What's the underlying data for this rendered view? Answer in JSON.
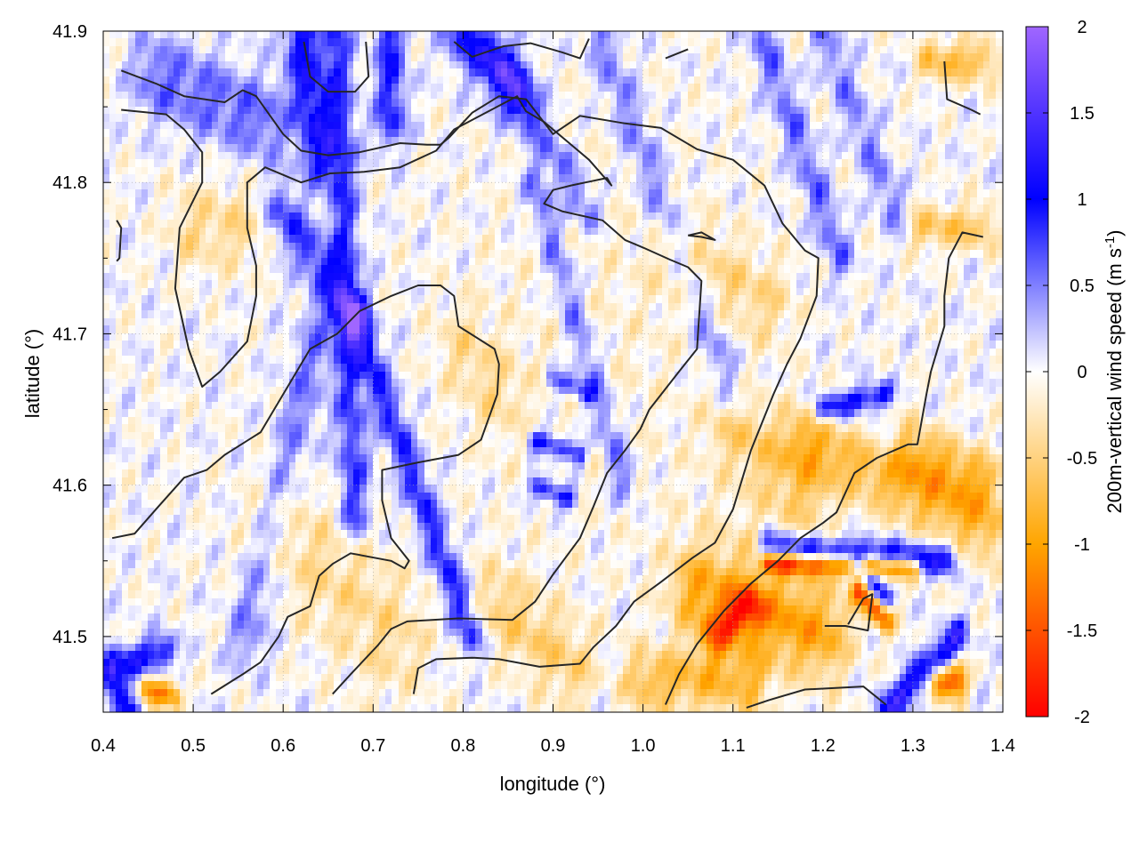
{
  "chart_data": {
    "type": "heatmap",
    "title": "",
    "xlabel": "longitude (°)",
    "ylabel": "latitude (°)",
    "xlim": [
      0.4,
      1.4
    ],
    "ylim": [
      41.45,
      41.9
    ],
    "x_ticks": [
      0.4,
      0.5,
      0.6,
      0.7,
      0.8,
      0.9,
      1.0,
      1.1,
      1.2,
      1.3,
      1.4
    ],
    "x_tick_labels": [
      "0.4",
      "0.5",
      "0.6",
      "0.7",
      "0.8",
      "0.9",
      "1.0",
      "1.1",
      "1.2",
      "1.3",
      "1.4"
    ],
    "y_ticks": [
      41.5,
      41.6,
      41.7,
      41.8,
      41.9
    ],
    "y_tick_labels": [
      "41.5",
      "41.6",
      "41.7",
      "41.8",
      "41.9"
    ],
    "grid": true,
    "colorbar": {
      "label_main": "200m-vertical wind speed (m s",
      "label_sup": "-1",
      "label_close": ")",
      "range": [
        -2,
        2
      ],
      "ticks": [
        -2,
        -1.5,
        -1,
        -0.5,
        0,
        0.5,
        1,
        1.5,
        2
      ],
      "tick_labels": [
        "-2",
        "-1.5",
        "-1",
        "-0.5",
        "0",
        "0.5",
        "1",
        "1.5",
        "2"
      ],
      "colors": [
        {
          "value": -2,
          "color": "#ff0000"
        },
        {
          "value": -1,
          "color": "#ffa500"
        },
        {
          "value": 0,
          "color": "#ffffff"
        },
        {
          "value": 1,
          "color": "#0000ff"
        },
        {
          "value": 2,
          "color": "#a066ff"
        }
      ]
    },
    "field_features": [
      {
        "lon0": 0.66,
        "lat0": 41.9,
        "lon1": 0.68,
        "lat1": 41.58,
        "w": 0.012,
        "amp": 0.8
      },
      {
        "lon0": 0.68,
        "lat0": 41.71,
        "lon1": 0.81,
        "lat1": 41.5,
        "w": 0.01,
        "amp": 0.9
      },
      {
        "lon0": 0.6,
        "lat0": 41.78,
        "lon1": 0.68,
        "lat1": 41.71,
        "w": 0.012,
        "amp": 0.8
      },
      {
        "lon0": 0.64,
        "lat0": 41.7,
        "lon1": 0.56,
        "lat1": 41.5,
        "w": 0.015,
        "amp": 0.5
      },
      {
        "lon0": 0.46,
        "lat0": 41.87,
        "lon1": 0.58,
        "lat1": 41.84,
        "w": 0.02,
        "amp": 0.6
      },
      {
        "lon0": 0.62,
        "lat0": 41.9,
        "lon1": 0.64,
        "lat1": 41.82,
        "w": 0.015,
        "amp": 1.0
      },
      {
        "lon0": 0.72,
        "lat0": 41.9,
        "lon1": 0.72,
        "lat1": 41.84,
        "w": 0.012,
        "amp": 0.9
      },
      {
        "lon0": 0.8,
        "lat0": 41.9,
        "lon1": 0.86,
        "lat1": 41.86,
        "w": 0.015,
        "amp": 1.0
      },
      {
        "lon0": 0.84,
        "lat0": 41.88,
        "lon1": 0.94,
        "lat1": 41.78,
        "w": 0.01,
        "amp": 0.6
      },
      {
        "lon0": 0.88,
        "lat0": 41.8,
        "lon1": 0.98,
        "lat1": 41.6,
        "w": 0.01,
        "amp": 0.6
      },
      {
        "lon0": 0.95,
        "lat0": 41.9,
        "lon1": 1.1,
        "lat1": 41.66,
        "w": 0.012,
        "amp": 0.5
      },
      {
        "lon0": 1.13,
        "lat0": 41.9,
        "lon1": 1.22,
        "lat1": 41.75,
        "w": 0.01,
        "amp": 0.6
      },
      {
        "lon0": 1.2,
        "lat0": 41.9,
        "lon1": 1.28,
        "lat1": 41.78,
        "w": 0.01,
        "amp": 0.5
      },
      {
        "lon0": 0.41,
        "lat0": 41.48,
        "lon1": 0.47,
        "lat1": 41.49,
        "w": 0.008,
        "amp": 1.0
      },
      {
        "lon0": 0.41,
        "lat0": 41.47,
        "lon1": 0.43,
        "lat1": 41.45,
        "w": 0.008,
        "amp": 1.0
      },
      {
        "lon0": 0.45,
        "lat0": 41.465,
        "lon1": 0.48,
        "lat1": 41.46,
        "w": 0.006,
        "amp": -1.2
      },
      {
        "lon0": 0.88,
        "lat0": 41.63,
        "lon1": 0.93,
        "lat1": 41.62,
        "w": 0.005,
        "amp": 1.0
      },
      {
        "lon0": 0.88,
        "lat0": 41.6,
        "lon1": 0.92,
        "lat1": 41.59,
        "w": 0.005,
        "amp": 1.0
      },
      {
        "lon0": 0.9,
        "lat0": 41.67,
        "lon1": 0.94,
        "lat1": 41.66,
        "w": 0.005,
        "amp": 0.8
      },
      {
        "lon0": 1.2,
        "lat0": 41.65,
        "lon1": 1.27,
        "lat1": 41.66,
        "w": 0.006,
        "amp": 1.0
      },
      {
        "lon0": 1.14,
        "lat0": 41.56,
        "lon1": 1.34,
        "lat1": 41.55,
        "w": 0.007,
        "amp": 1.1
      },
      {
        "lon0": 1.14,
        "lat0": 41.548,
        "lon1": 1.3,
        "lat1": 41.545,
        "w": 0.005,
        "amp": -1.4
      },
      {
        "lon0": 1.24,
        "lat0": 41.53,
        "lon1": 1.27,
        "lat1": 41.51,
        "w": 0.006,
        "amp": -1.3
      },
      {
        "lon0": 1.24,
        "lat0": 41.545,
        "lon1": 1.27,
        "lat1": 41.525,
        "w": 0.005,
        "amp": 1.0
      },
      {
        "lon0": 1.27,
        "lat0": 41.45,
        "lon1": 1.35,
        "lat1": 41.5,
        "w": 0.008,
        "amp": 1.2
      },
      {
        "lon0": 1.33,
        "lat0": 41.47,
        "lon1": 1.35,
        "lat1": 41.47,
        "w": 0.008,
        "amp": -1.5
      },
      {
        "lon0": 1.08,
        "lat0": 41.5,
        "lon1": 1.12,
        "lat1": 41.52,
        "w": 0.01,
        "amp": -1.0
      },
      {
        "lon0": 1.0,
        "lat0": 41.47,
        "lon1": 1.12,
        "lat1": 41.47,
        "w": 0.015,
        "amp": -0.7
      },
      {
        "lon0": 1.06,
        "lat0": 41.53,
        "lon1": 1.2,
        "lat1": 41.5,
        "w": 0.02,
        "amp": -0.8
      },
      {
        "lon0": 1.18,
        "lat0": 41.63,
        "lon1": 1.38,
        "lat1": 41.57,
        "w": 0.015,
        "amp": -0.7
      },
      {
        "lon0": 1.32,
        "lat0": 41.88,
        "lon1": 1.38,
        "lat1": 41.88,
        "w": 0.01,
        "amp": -0.7
      },
      {
        "lon0": 1.31,
        "lat0": 41.77,
        "lon1": 1.38,
        "lat1": 41.77,
        "w": 0.01,
        "amp": -0.6
      },
      {
        "lon0": 0.5,
        "lat0": 41.77,
        "lon1": 0.55,
        "lat1": 41.77,
        "w": 0.02,
        "amp": -0.4
      },
      {
        "lon0": 0.8,
        "lat0": 41.69,
        "lon1": 0.84,
        "lat1": 41.66,
        "w": 0.02,
        "amp": -0.35
      },
      {
        "lon0": 0.6,
        "lat0": 41.57,
        "lon1": 0.72,
        "lat1": 41.5,
        "w": 0.03,
        "amp": -0.4
      },
      {
        "lon0": 0.84,
        "lat0": 41.52,
        "lon1": 0.92,
        "lat1": 41.48,
        "w": 0.02,
        "amp": -0.5
      },
      {
        "lon0": 1.04,
        "lat0": 41.75,
        "lon1": 1.14,
        "lat1": 41.72,
        "w": 0.02,
        "amp": -0.4
      },
      {
        "lon0": 1.1,
        "lat0": 41.64,
        "lon1": 1.18,
        "lat1": 41.6,
        "w": 0.02,
        "amp": -0.5
      },
      {
        "lon0": 1.3,
        "lat0": 41.62,
        "lon1": 1.38,
        "lat1": 41.6,
        "w": 0.015,
        "amp": -0.8
      }
    ],
    "contours": [
      [
        [
          0.42,
          41.874
        ],
        [
          0.46,
          41.865
        ],
        [
          0.49,
          41.857
        ],
        [
          0.535,
          41.853
        ],
        [
          0.555,
          41.861
        ],
        [
          0.57,
          41.857
        ],
        [
          0.6,
          41.832
        ],
        [
          0.62,
          41.821
        ],
        [
          0.65,
          41.818
        ],
        [
          0.685,
          41.82
        ],
        [
          0.73,
          41.826
        ],
        [
          0.76,
          41.825
        ],
        [
          0.775,
          41.825
        ],
        [
          0.785,
          41.83
        ],
        [
          0.81,
          41.846
        ],
        [
          0.84,
          41.857
        ],
        [
          0.87,
          41.855
        ],
        [
          0.9,
          41.832
        ],
        [
          0.93,
          41.844
        ],
        [
          0.98,
          41.839
        ],
        [
          1.02,
          41.836
        ],
        [
          1.06,
          41.822
        ],
        [
          1.1,
          41.815
        ],
        [
          1.135,
          41.798
        ],
        [
          1.155,
          41.773
        ],
        [
          1.18,
          41.755
        ],
        [
          1.195,
          41.75
        ],
        [
          1.193,
          41.725
        ],
        [
          1.175,
          41.697
        ],
        [
          1.16,
          41.68
        ],
        [
          1.145,
          41.66
        ],
        [
          1.12,
          41.623
        ],
        [
          1.1,
          41.584
        ],
        [
          1.08,
          41.562
        ],
        [
          1.055,
          41.552
        ],
        [
          1.02,
          41.536
        ],
        [
          0.99,
          41.523
        ],
        [
          0.97,
          41.507
        ],
        [
          0.945,
          41.493
        ],
        [
          0.93,
          41.482
        ],
        [
          0.885,
          41.48
        ],
        [
          0.84,
          41.485
        ],
        [
          0.81,
          41.486
        ],
        [
          0.77,
          41.485
        ],
        [
          0.75,
          41.479
        ],
        [
          0.745,
          41.462
        ]
      ],
      [
        [
          0.655,
          41.462
        ],
        [
          0.675,
          41.475
        ],
        [
          0.705,
          41.494
        ],
        [
          0.72,
          41.505
        ],
        [
          0.738,
          41.51
        ],
        [
          0.795,
          41.512
        ],
        [
          0.855,
          41.511
        ],
        [
          0.88,
          41.523
        ],
        [
          0.9,
          41.541
        ],
        [
          0.93,
          41.565
        ],
        [
          0.945,
          41.586
        ],
        [
          0.96,
          41.608
        ],
        [
          0.98,
          41.623
        ],
        [
          0.997,
          41.637
        ],
        [
          1.007,
          41.65
        ],
        [
          1.04,
          41.675
        ],
        [
          1.06,
          41.69
        ],
        [
          1.065,
          41.735
        ],
        [
          1.05,
          41.744
        ],
        [
          1.03,
          41.749
        ],
        [
          1.0,
          41.757
        ],
        [
          0.98,
          41.762
        ],
        [
          0.955,
          41.775
        ],
        [
          0.91,
          41.781
        ],
        [
          0.89,
          41.786
        ],
        [
          0.9,
          41.795
        ],
        [
          0.92,
          41.798
        ],
        [
          0.96,
          41.803
        ],
        [
          0.965,
          41.798
        ],
        [
          0.94,
          41.815
        ],
        [
          0.89,
          41.84
        ],
        [
          0.87,
          41.847
        ],
        [
          0.86,
          41.857
        ],
        [
          0.79,
          41.835
        ],
        [
          0.77,
          41.821
        ],
        [
          0.73,
          41.81
        ],
        [
          0.69,
          41.807
        ],
        [
          0.652,
          41.806
        ],
        [
          0.62,
          41.8
        ],
        [
          0.58,
          41.81
        ],
        [
          0.56,
          41.8
        ],
        [
          0.56,
          41.77
        ],
        [
          0.57,
          41.745
        ],
        [
          0.57,
          41.725
        ],
        [
          0.56,
          41.695
        ],
        [
          0.53,
          41.675
        ],
        [
          0.51,
          41.665
        ],
        [
          0.495,
          41.69
        ],
        [
          0.48,
          41.73
        ],
        [
          0.485,
          41.77
        ],
        [
          0.51,
          41.8
        ],
        [
          0.51,
          41.82
        ],
        [
          0.49,
          41.835
        ],
        [
          0.47,
          41.845
        ],
        [
          0.42,
          41.848
        ]
      ],
      [
        [
          0.41,
          41.565
        ],
        [
          0.435,
          41.568
        ],
        [
          0.46,
          41.585
        ],
        [
          0.49,
          41.605
        ],
        [
          0.515,
          41.61
        ],
        [
          0.535,
          41.62
        ],
        [
          0.575,
          41.635
        ],
        [
          0.6,
          41.66
        ],
        [
          0.63,
          41.69
        ],
        [
          0.66,
          41.7
        ],
        [
          0.685,
          41.715
        ],
        [
          0.72,
          41.725
        ],
        [
          0.75,
          41.732
        ],
        [
          0.775,
          41.732
        ],
        [
          0.79,
          41.725
        ],
        [
          0.795,
          41.705
        ],
        [
          0.835,
          41.69
        ],
        [
          0.84,
          41.68
        ],
        [
          0.838,
          41.66
        ],
        [
          0.82,
          41.63
        ],
        [
          0.795,
          41.62
        ],
        [
          0.75,
          41.615
        ],
        [
          0.71,
          41.61
        ],
        [
          0.71,
          41.59
        ],
        [
          0.72,
          41.565
        ],
        [
          0.74,
          41.55
        ],
        [
          0.735,
          41.545
        ],
        [
          0.72,
          41.55
        ],
        [
          0.675,
          41.555
        ],
        [
          0.655,
          41.548
        ],
        [
          0.64,
          41.54
        ],
        [
          0.63,
          41.52
        ],
        [
          0.605,
          41.513
        ],
        [
          0.595,
          41.5
        ],
        [
          0.575,
          41.483
        ],
        [
          0.555,
          41.475
        ],
        [
          0.52,
          41.462
        ]
      ],
      [
        [
          1.025,
          41.455
        ],
        [
          1.04,
          41.475
        ],
        [
          1.06,
          41.495
        ],
        [
          1.09,
          41.517
        ],
        [
          1.12,
          41.535
        ],
        [
          1.15,
          41.55
        ],
        [
          1.175,
          41.565
        ],
        [
          1.2,
          41.575
        ],
        [
          1.215,
          41.582
        ],
        [
          1.235,
          41.608
        ],
        [
          1.26,
          41.618
        ],
        [
          1.295,
          41.627
        ],
        [
          1.305,
          41.627
        ],
        [
          1.315,
          41.66
        ],
        [
          1.32,
          41.675
        ],
        [
          1.335,
          41.705
        ],
        [
          1.335,
          41.725
        ],
        [
          1.34,
          41.75
        ],
        [
          1.355,
          41.767
        ],
        [
          1.378,
          41.764
        ]
      ],
      [
        [
          1.202,
          41.507
        ],
        [
          1.225,
          41.507
        ],
        [
          1.25,
          41.504
        ],
        [
          1.255,
          41.528
        ],
        [
          1.245,
          41.525
        ],
        [
          1.228,
          41.508
        ]
      ],
      [
        [
          1.115,
          41.453
        ],
        [
          1.14,
          41.458
        ],
        [
          1.18,
          41.465
        ],
        [
          1.245,
          41.467
        ],
        [
          1.27,
          41.455
        ]
      ],
      [
        [
          0.79,
          41.893
        ],
        [
          0.81,
          41.883
        ],
        [
          0.83,
          41.887
        ],
        [
          0.845,
          41.89
        ],
        [
          0.875,
          41.892
        ],
        [
          0.91,
          41.886
        ],
        [
          0.93,
          41.882
        ],
        [
          0.94,
          41.895
        ]
      ],
      [
        [
          0.623,
          41.893
        ],
        [
          0.63,
          41.87
        ],
        [
          0.65,
          41.86
        ],
        [
          0.68,
          41.86
        ],
        [
          0.695,
          41.87
        ],
        [
          0.692,
          41.893
        ]
      ],
      [
        [
          1.025,
          41.882
        ],
        [
          1.05,
          41.888
        ]
      ],
      [
        [
          1.05,
          41.765
        ],
        [
          1.065,
          41.764
        ],
        [
          1.08,
          41.762
        ],
        [
          1.065,
          41.767
        ],
        [
          1.05,
          41.765
        ]
      ],
      [
        [
          0.415,
          41.775
        ],
        [
          0.42,
          41.77
        ],
        [
          0.418,
          41.75
        ],
        [
          0.415,
          41.748
        ]
      ],
      [
        [
          1.335,
          41.88
        ],
        [
          1.338,
          41.855
        ],
        [
          1.365,
          41.848
        ],
        [
          1.375,
          41.845
        ]
      ]
    ]
  }
}
